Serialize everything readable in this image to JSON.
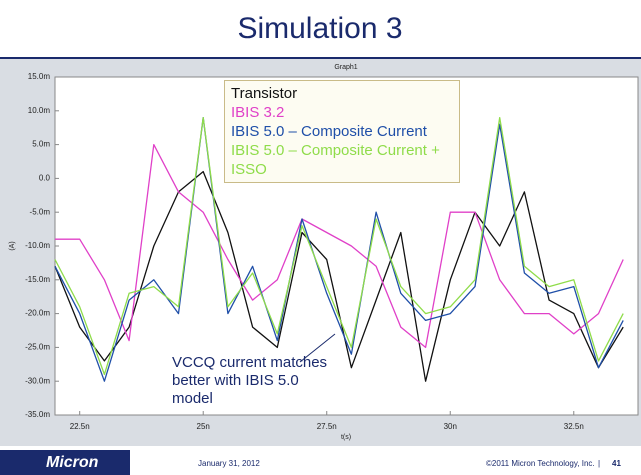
{
  "slide": {
    "title": "Simulation 3",
    "logo": "Micron",
    "date": "January 31, 2012",
    "copyright": "©2011 Micron Technology, Inc.",
    "separator": "|",
    "page": "41"
  },
  "chart_data": {
    "type": "line",
    "title": "Graph1",
    "x_label": "t(s)",
    "y_label": "(A)",
    "annotation": "VCCQ current matches better with IBIS 5.0 model",
    "xlim": [
      2.2e-08,
      3.38e-08
    ],
    "ylim": [
      -0.035,
      0.015
    ],
    "grid": false,
    "legend": "top",
    "xticks": [
      {
        "value": 2.25e-08,
        "label": "22.5n"
      },
      {
        "value": 2.5e-08,
        "label": "25n"
      },
      {
        "value": 2.75e-08,
        "label": "27.5n"
      },
      {
        "value": 3e-08,
        "label": "30n"
      },
      {
        "value": 3.25e-08,
        "label": "32.5n"
      }
    ],
    "yticks": [
      {
        "value": 0.015,
        "label": "15.0m"
      },
      {
        "value": 0.01,
        "label": "10.0m"
      },
      {
        "value": 0.005,
        "label": "5.0m"
      },
      {
        "value": 0,
        "label": "0.0"
      },
      {
        "value": -0.005,
        "label": "-5.0m"
      },
      {
        "value": -0.01,
        "label": "-10.0m"
      },
      {
        "value": -0.015,
        "label": "-15.0m"
      },
      {
        "value": -0.02,
        "label": "-20.0m"
      },
      {
        "value": -0.025,
        "label": "-25.0m"
      },
      {
        "value": -0.03,
        "label": "-30.0m"
      },
      {
        "value": -0.035,
        "label": "-35.0m"
      }
    ],
    "x": [
      2.2e-08,
      2.25e-08,
      2.3e-08,
      2.35e-08,
      2.4e-08,
      2.45e-08,
      2.5e-08,
      2.55e-08,
      2.6e-08,
      2.65e-08,
      2.7e-08,
      2.75e-08,
      2.8e-08,
      2.85e-08,
      2.9e-08,
      2.95e-08,
      3e-08,
      3.05e-08,
      3.1e-08,
      3.15e-08,
      3.2e-08,
      3.25e-08,
      3.3e-08,
      3.35e-08
    ],
    "series": [
      {
        "name": "Transistor",
        "color": "#111111",
        "values": [
          -0.013,
          -0.022,
          -0.027,
          -0.022,
          -0.01,
          -0.002,
          0.001,
          -0.008,
          -0.022,
          -0.025,
          -0.008,
          -0.012,
          -0.028,
          -0.018,
          -0.008,
          -0.03,
          -0.015,
          -0.005,
          -0.01,
          -0.002,
          -0.018,
          -0.02,
          -0.028,
          -0.022
        ]
      },
      {
        "name": "IBIS 3.2",
        "color": "#e040c8",
        "values": [
          -0.009,
          -0.009,
          -0.015,
          -0.024,
          0.005,
          -0.002,
          -0.005,
          -0.012,
          -0.018,
          -0.015,
          -0.006,
          -0.008,
          -0.01,
          -0.013,
          -0.022,
          -0.025,
          -0.005,
          -0.005,
          -0.015,
          -0.02,
          -0.02,
          -0.023,
          -0.02,
          -0.012
        ]
      },
      {
        "name": "IBIS 5.0 – Composite Current",
        "color": "#1f4fa8",
        "values": [
          -0.013,
          -0.02,
          -0.03,
          -0.018,
          -0.015,
          -0.02,
          0.009,
          -0.02,
          -0.013,
          -0.024,
          -0.006,
          -0.017,
          -0.026,
          -0.005,
          -0.017,
          -0.021,
          -0.02,
          -0.016,
          0.008,
          -0.014,
          -0.017,
          -0.016,
          -0.028,
          -0.021
        ]
      },
      {
        "name": "IBIS 5.0 – Composite Current + ISSO",
        "color": "#8fdc4a",
        "values": [
          -0.012,
          -0.019,
          -0.029,
          -0.017,
          -0.016,
          -0.019,
          0.009,
          -0.019,
          -0.014,
          -0.023,
          -0.007,
          -0.016,
          -0.025,
          -0.006,
          -0.016,
          -0.02,
          -0.019,
          -0.015,
          0.009,
          -0.013,
          -0.016,
          -0.015,
          -0.027,
          -0.02
        ]
      }
    ]
  }
}
